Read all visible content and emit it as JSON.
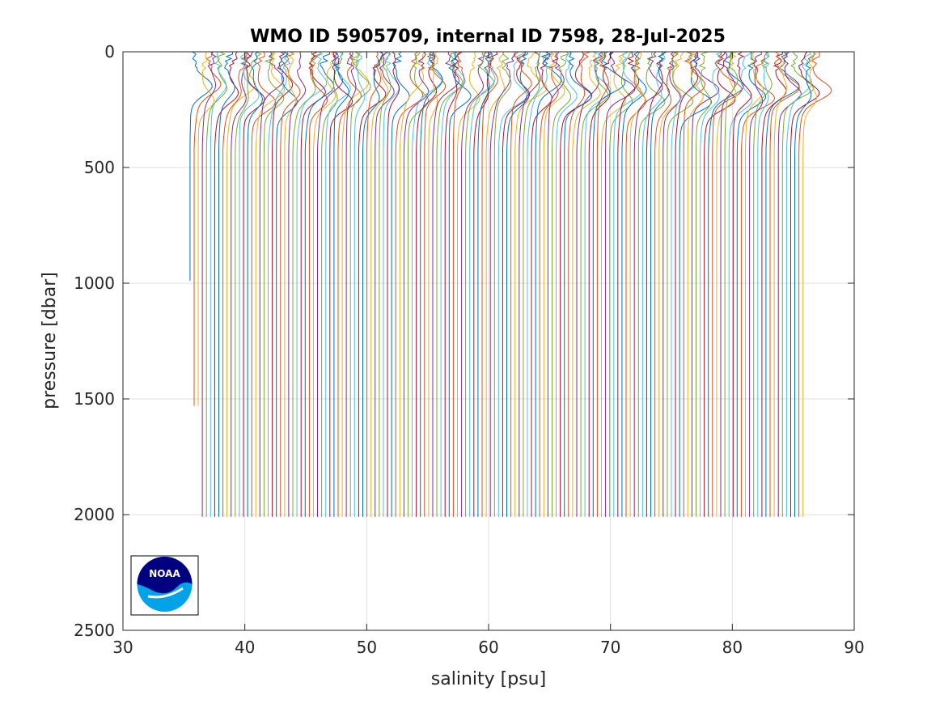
{
  "chart_data": {
    "type": "line",
    "title": "WMO ID 5905709, internal ID 7598, 28-Jul-2025",
    "xlabel": "salinity [psu]",
    "ylabel": "pressure [dbar]",
    "xlim": [
      30,
      90
    ],
    "ylim": [
      0,
      2500
    ],
    "y_reversed": true,
    "grid": true,
    "xticks": [
      "30",
      "40",
      "50",
      "60",
      "70",
      "80",
      "90"
    ],
    "yticks": [
      "0",
      "500",
      "1000",
      "1500",
      "2000",
      "2500"
    ],
    "stacked_profiles": {
      "count": 150,
      "first_deep_salinity": 35.5,
      "last_deep_salinity": 85.8,
      "max_pressure": 2010,
      "note_first_profiles_max_pressure": [
        990,
        1530
      ]
    },
    "series_colors": [
      "#0072BD",
      "#D95319",
      "#EDB120",
      "#7E2F8E",
      "#77AC30",
      "#4DBEEE",
      "#A2142F"
    ]
  },
  "logo": {
    "name": "noaa-logo",
    "text": "NOAA",
    "colors": {
      "dark": "#000080",
      "light": "#00A2E8"
    }
  }
}
